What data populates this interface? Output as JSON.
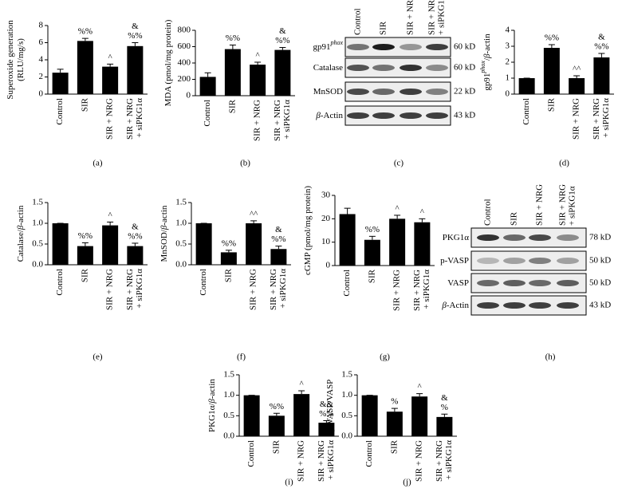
{
  "chart_data": [
    {
      "type": "bar",
      "panel": "(a)",
      "ylabel": [
        [
          {
            "text": "Superoxide generation"
          }
        ],
        [
          {
            "text": "(RLU/mg/s)"
          }
        ]
      ],
      "categories": [
        [
          "Control"
        ],
        [
          "SIR"
        ],
        [
          "SIR + NRG"
        ],
        [
          "SIR + NRG",
          "+ siPKG1α"
        ]
      ],
      "values": [
        2.5,
        6.2,
        3.2,
        5.6
      ],
      "errors": [
        0.4,
        0.3,
        0.3,
        0.4
      ],
      "annotations": [
        null,
        [
          "%%"
        ],
        [
          "^"
        ],
        [
          "&",
          "%%"
        ]
      ],
      "ylim": [
        0,
        8
      ],
      "yticks": [
        0,
        2,
        4,
        6,
        8
      ],
      "color": "#000000"
    },
    {
      "type": "bar",
      "panel": "(b)",
      "ylabel": [
        [
          {
            "text": "MDA (pmol/mg protein)"
          }
        ]
      ],
      "categories": [
        [
          "Control"
        ],
        [
          "SIR"
        ],
        [
          "SIR + NRG"
        ],
        [
          "SIR + NRG",
          "+ siPKG1α"
        ]
      ],
      "values": [
        230,
        570,
        380,
        560
      ],
      "errors": [
        50,
        50,
        30,
        30
      ],
      "annotations": [
        null,
        [
          "%%"
        ],
        [
          "^"
        ],
        [
          "&",
          "%%"
        ]
      ],
      "ylim": [
        0,
        800
      ],
      "yticks": [
        0,
        200,
        400,
        600,
        800
      ],
      "color": "#000000"
    },
    {
      "type": "bar",
      "panel": "(d)",
      "ylabel": [
        [
          {
            "text": "gp91"
          },
          {
            "text": "phox",
            "style": "sup"
          },
          {
            "text": "/"
          },
          {
            "text": "β",
            "style": "italic"
          },
          {
            "text": "-actin"
          }
        ]
      ],
      "categories": [
        [
          "Control"
        ],
        [
          "SIR"
        ],
        [
          "SIR + NRG"
        ],
        [
          "SIR + NRG",
          "+ siPKG1α"
        ]
      ],
      "values": [
        1.0,
        2.9,
        1.0,
        2.3
      ],
      "errors": [
        0,
        0.2,
        0.15,
        0.25
      ],
      "annotations": [
        null,
        [
          "%%"
        ],
        [
          "^^"
        ],
        [
          "&",
          "%%"
        ]
      ],
      "ylim": [
        0,
        4
      ],
      "yticks": [
        0,
        1,
        2,
        3,
        4
      ],
      "color": "#000000"
    },
    {
      "type": "bar",
      "panel": "(e)",
      "ylabel": [
        [
          {
            "text": "Catalase/"
          },
          {
            "text": "β",
            "style": "italic"
          },
          {
            "text": "-actin"
          }
        ]
      ],
      "categories": [
        [
          "Control"
        ],
        [
          "SIR"
        ],
        [
          "SIR + NRG"
        ],
        [
          "SIR + NRG",
          "+ siPKG1α"
        ]
      ],
      "values": [
        1.0,
        0.45,
        0.95,
        0.45
      ],
      "errors": [
        0,
        0.08,
        0.08,
        0.07
      ],
      "annotations": [
        null,
        [
          "%%"
        ],
        [
          "^"
        ],
        [
          "&",
          "%%"
        ]
      ],
      "ylim": [
        0,
        1.5
      ],
      "yticks": [
        {
          "value": 0,
          "label": "0.0"
        },
        0.5,
        {
          "value": 1,
          "label": "1.0"
        },
        1.5
      ],
      "color": "#000000"
    },
    {
      "type": "bar",
      "panel": "(f)",
      "ylabel": [
        [
          {
            "text": "MnSOD/"
          },
          {
            "text": "β",
            "style": "italic"
          },
          {
            "text": "-actin"
          }
        ]
      ],
      "categories": [
        [
          "Control"
        ],
        [
          "SIR"
        ],
        [
          "SIR + NRG"
        ],
        [
          "SIR + NRG",
          "+ siPKG1α"
        ]
      ],
      "values": [
        1.0,
        0.3,
        1.0,
        0.38
      ],
      "errors": [
        0,
        0.05,
        0.06,
        0.07
      ],
      "annotations": [
        null,
        [
          "%%"
        ],
        [
          "^^"
        ],
        [
          "&",
          "%%"
        ]
      ],
      "ylim": [
        0,
        1.5
      ],
      "yticks": [
        {
          "value": 0,
          "label": "0.0"
        },
        0.5,
        {
          "value": 1,
          "label": "1.0"
        },
        1.5
      ],
      "color": "#000000"
    },
    {
      "type": "bar",
      "panel": "(g)",
      "ylabel": [
        [
          {
            "text": "cGMP (pmol/mg protein)"
          }
        ]
      ],
      "categories": [
        [
          "Control"
        ],
        [
          "SIR"
        ],
        [
          "SIR + NRG"
        ],
        [
          "SIR + NRG",
          "+ siPKG1α"
        ]
      ],
      "values": [
        22,
        11,
        20,
        18.5
      ],
      "errors": [
        2.5,
        1.5,
        1.5,
        1.5
      ],
      "annotations": [
        null,
        [
          "%%"
        ],
        [
          "^"
        ],
        [
          "^"
        ]
      ],
      "ylim": [
        0,
        30
      ],
      "yticks": [
        0,
        10,
        20,
        30
      ],
      "color": "#000000"
    },
    {
      "type": "bar",
      "panel": "(i)",
      "ylabel": [
        [
          {
            "text": "PKG1α/"
          },
          {
            "text": "β",
            "style": "italic"
          },
          {
            "text": "-actin"
          }
        ]
      ],
      "categories": [
        [
          "Control"
        ],
        [
          "SIR"
        ],
        [
          "SIR + NRG"
        ],
        [
          "SIR + NRG",
          "+ siPKG1α"
        ]
      ],
      "values": [
        1.0,
        0.5,
        1.03,
        0.33
      ],
      "errors": [
        0,
        0.06,
        0.08,
        0.05
      ],
      "annotations": [
        null,
        [
          "%%"
        ],
        [
          "^"
        ],
        [
          "&&",
          "%%"
        ]
      ],
      "ylim": [
        0,
        1.5
      ],
      "yticks": [
        {
          "value": 0,
          "label": "0.0"
        },
        0.5,
        {
          "value": 1,
          "label": "1.0"
        },
        1.5
      ],
      "color": "#000000"
    },
    {
      "type": "bar",
      "panel": "(j)",
      "ylabel": [
        [
          {
            "text": "p-VASP/VASP"
          }
        ]
      ],
      "categories": [
        [
          "Control"
        ],
        [
          "SIR"
        ],
        [
          "SIR + NRG"
        ],
        [
          "SIR + NRG",
          "+ siPKG1α"
        ]
      ],
      "values": [
        1.0,
        0.6,
        0.97,
        0.47
      ],
      "errors": [
        0,
        0.08,
        0.07,
        0.07
      ],
      "annotations": [
        null,
        [
          "%"
        ],
        [
          "^"
        ],
        [
          "&",
          "%"
        ]
      ],
      "ylim": [
        0,
        1.5
      ],
      "yticks": [
        {
          "value": 0,
          "label": "0.0"
        },
        0.5,
        {
          "value": 1,
          "label": "1.0"
        },
        1.5
      ],
      "color": "#000000"
    }
  ],
  "blots": [
    {
      "panel": "(c)",
      "lanes": [
        [
          "Control"
        ],
        [
          "SIR"
        ],
        [
          "SIR + NRG"
        ],
        [
          "SIR + NRG",
          "+ siPKG1α"
        ]
      ],
      "rows": [
        {
          "label": [
            {
              "text": "gp91"
            },
            {
              "text": "phox",
              "style": "sup"
            }
          ],
          "size": "60 kD"
        },
        {
          "label": [
            {
              "text": "Catalase"
            }
          ],
          "size": "60 kD"
        },
        {
          "label": [
            {
              "text": "MnSOD"
            }
          ],
          "size": "22 kD"
        },
        {
          "label": [
            {
              "text": "β",
              "style": "italic"
            },
            {
              "text": "-Actin"
            }
          ],
          "size": "43 kD"
        }
      ]
    },
    {
      "panel": "(h)",
      "lanes": [
        [
          "Control"
        ],
        [
          "SIR"
        ],
        [
          "SIR + NRG"
        ],
        [
          "SIR + NRG",
          "+ siPKG1α"
        ]
      ],
      "rows": [
        {
          "label": [
            {
              "text": "PKG1α"
            }
          ],
          "size": "78 kD"
        },
        {
          "label": [
            {
              "text": "p-VASP"
            }
          ],
          "size": "50 kD"
        },
        {
          "label": [
            {
              "text": "VASP"
            }
          ],
          "size": "50 kD"
        },
        {
          "label": [
            {
              "text": "β",
              "style": "italic"
            },
            {
              "text": "-Actin"
            }
          ],
          "size": "43 kD"
        }
      ]
    }
  ]
}
